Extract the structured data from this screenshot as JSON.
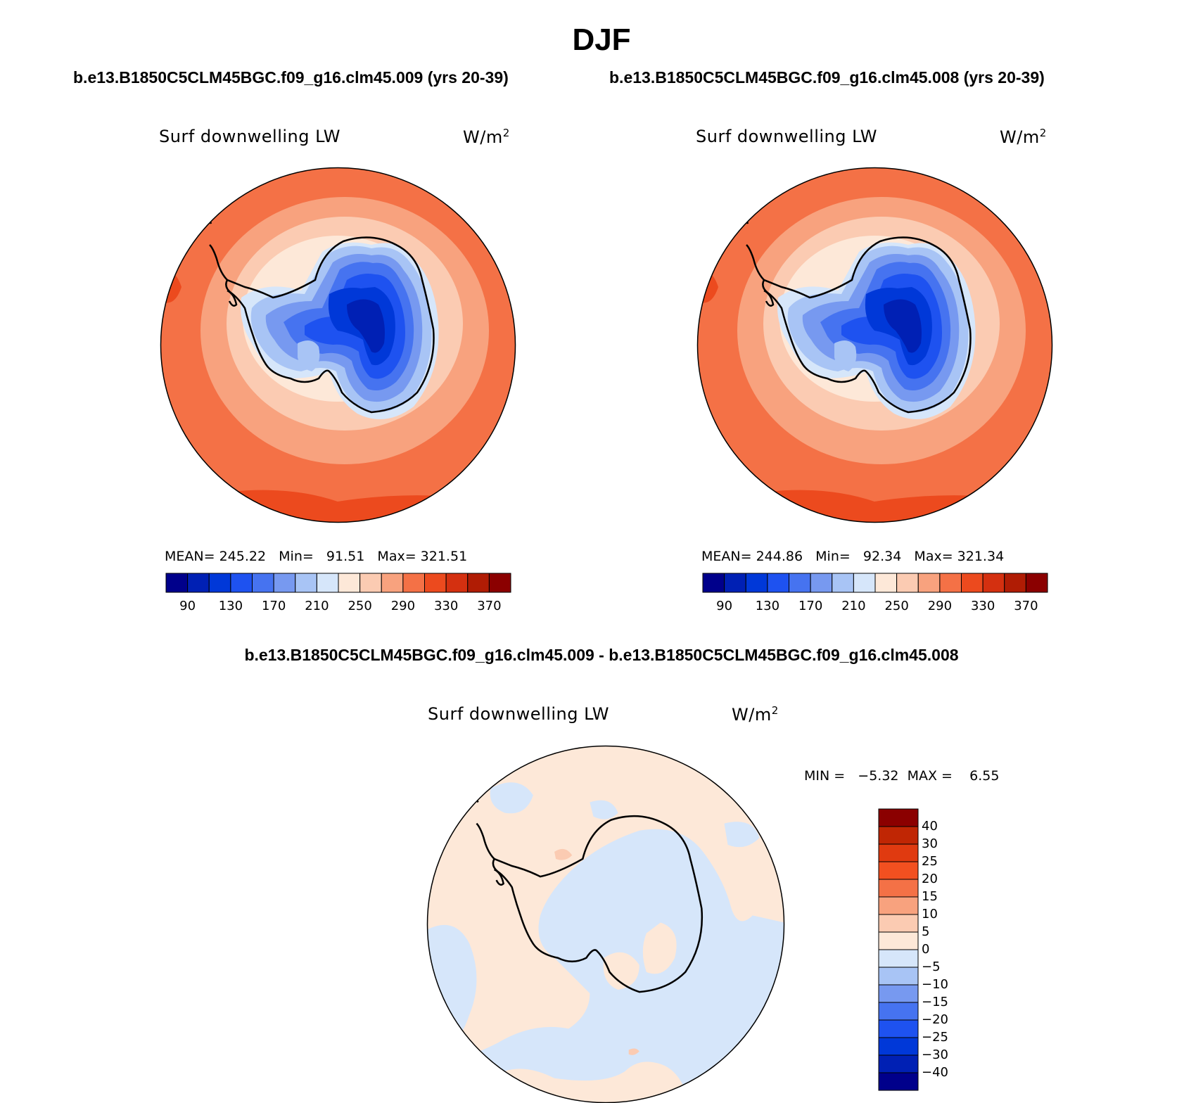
{
  "title": "DJF",
  "panels": [
    {
      "case_title": "b.e13.B1850C5CLM45BGC.f09_g16.clm45.009 (yrs 20-39)",
      "variable": "Surf downwelling LW",
      "units": "W/m",
      "units_sup": "2",
      "stats": "MEAN= 245.22   Min=   91.51   Max= 321.51"
    },
    {
      "case_title": "b.e13.B1850C5CLM45BGC.f09_g16.clm45.008 (yrs 20-39)",
      "variable": "Surf downwelling LW",
      "units": "W/m",
      "units_sup": "2",
      "stats": "MEAN= 244.86   Min=   92.34   Max= 321.34"
    }
  ],
  "colorbar_abs": {
    "colors": [
      "#00008b",
      "#0020b4",
      "#0038d8",
      "#1e52f0",
      "#4673f0",
      "#7799f0",
      "#a8c4f5",
      "#d6e6fa",
      "#fde8d8",
      "#fbcbb2",
      "#f8a27e",
      "#f47146",
      "#ec4a1e",
      "#d43010",
      "#b01c04",
      "#8b0000"
    ],
    "labels": [
      "90",
      "130",
      "170",
      "210",
      "250",
      "290",
      "330",
      "370"
    ]
  },
  "difference": {
    "title": "b.e13.B1850C5CLM45BGC.f09_g16.clm45.009 - b.e13.B1850C5CLM45BGC.f09_g16.clm45.008",
    "variable": "Surf downwelling LW",
    "units": "W/m",
    "units_sup": "2",
    "stats": "MIN =   −5.32  MAX =    6.55",
    "colors": [
      "#8b0000",
      "#c02604",
      "#e03a10",
      "#f25020",
      "#f47146",
      "#f8a27e",
      "#fbcbb2",
      "#fde8d8",
      "#d6e6fa",
      "#a8c4f5",
      "#7799f0",
      "#4673f0",
      "#1e52f0",
      "#0038d8",
      "#0020b4",
      "#00008b"
    ],
    "labels": [
      "40",
      "30",
      "25",
      "20",
      "15",
      "10",
      "5",
      "0",
      "−5",
      "−10",
      "−15",
      "−20",
      "−25",
      "−30",
      "−40"
    ]
  },
  "legend_colors": {
    "ocean_warm": "#f47146",
    "ocean_mid": "#f8a27e",
    "ocean_cool": "#fbcbb2",
    "ice_light": "#d6e6fa",
    "diff_pos": "#fde8d8",
    "diff_neg": "#d6e6fa"
  }
}
